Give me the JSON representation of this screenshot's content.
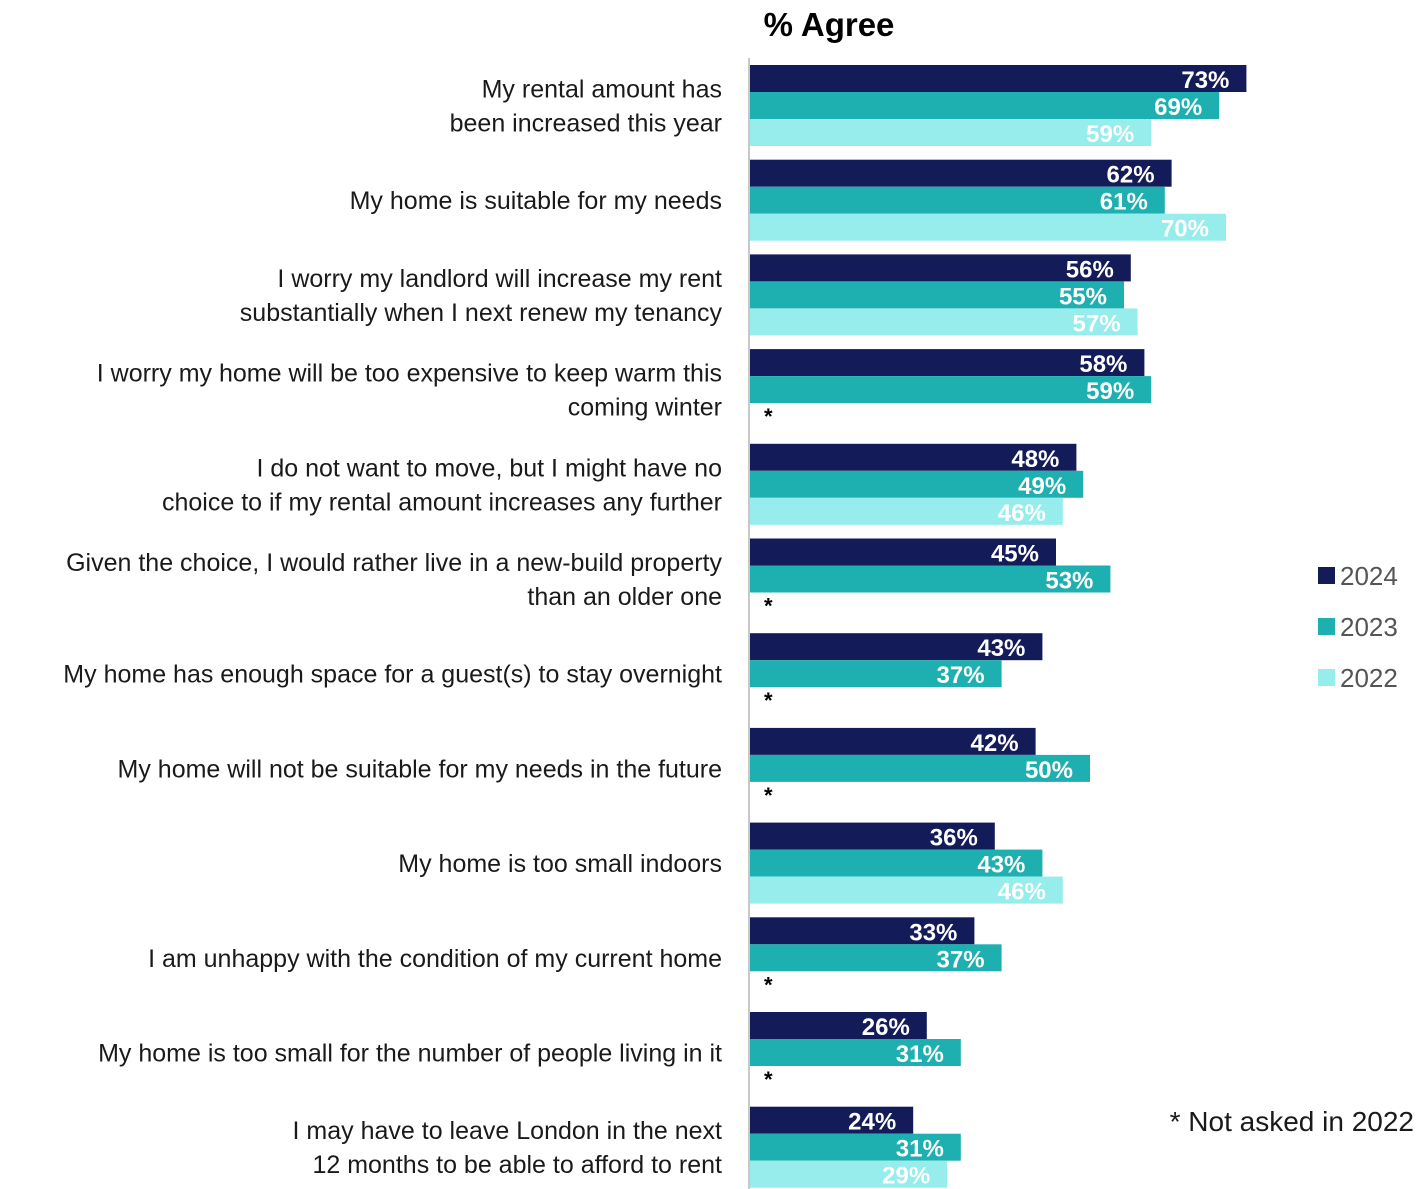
{
  "chart_data": {
    "type": "bar",
    "orientation": "horizontal",
    "title": "% Agree",
    "xlim": [
      0,
      100
    ],
    "value_suffix": "%",
    "categories": [
      [
        "My rental amount has",
        "been increased this year"
      ],
      [
        "My home is suitable for my needs"
      ],
      [
        "I worry my landlord will increase my rent",
        "substantially when I next renew my tenancy"
      ],
      [
        "I worry my home will be too expensive to keep warm this",
        "coming winter"
      ],
      [
        "I do not want to move, but I might have no",
        "choice to if my rental amount increases any further"
      ],
      [
        "Given the choice, I would rather live in a new-build property",
        "than an older one"
      ],
      [
        "My home has enough space for a guest(s) to stay overnight"
      ],
      [
        "My home will not be suitable for my needs in the future"
      ],
      [
        "My home is too small indoors"
      ],
      [
        "I am unhappy with the condition of my current home"
      ],
      [
        "My home is too small for the number of people living in it"
      ],
      [
        "I may have to leave London in the next",
        "12 months to be able to afford to rent"
      ]
    ],
    "series": [
      {
        "name": "2024",
        "color": "#141b59",
        "values": [
          73,
          62,
          56,
          58,
          48,
          45,
          43,
          42,
          36,
          33,
          26,
          24
        ]
      },
      {
        "name": "2023",
        "color": "#1eb0b0",
        "values": [
          69,
          61,
          55,
          59,
          49,
          53,
          37,
          50,
          43,
          37,
          31,
          31
        ]
      },
      {
        "name": "2022",
        "color": "#97ecec",
        "values": [
          59,
          70,
          57,
          null,
          46,
          null,
          null,
          null,
          46,
          null,
          null,
          29
        ]
      }
    ],
    "not_asked_marker": "*",
    "legend_position": "right",
    "footnote": "* Not asked in 2022",
    "grid": false
  }
}
